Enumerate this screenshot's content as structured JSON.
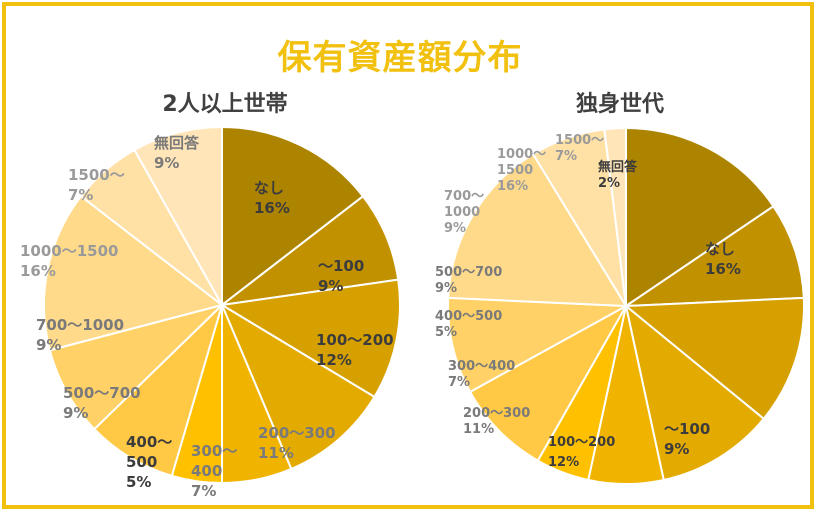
{
  "title": "保有資産額分布",
  "colors": {
    "border": "#f2c00e",
    "title": "#f2c00e",
    "slices": [
      "#ad8400",
      "#c29100",
      "#d6a000",
      "#e3aa00",
      "#f0b400",
      "#ffc000",
      "#ffc845",
      "#ffd166",
      "#ffda8a",
      "#ffe1a6",
      "#ffe5b8",
      "#ffe8c6"
    ]
  },
  "chart_data": [
    {
      "type": "pie",
      "title": "2人以上世帯",
      "categories": [
        "なし",
        "～100",
        "100～200",
        "200～300",
        "300～400",
        "400～500",
        "500～700",
        "700～1000",
        "1000～1500",
        "1500～",
        "無回答"
      ],
      "values": [
        16,
        9,
        12,
        11,
        7,
        5,
        9,
        9,
        16,
        7,
        9
      ],
      "labels": [
        [
          "なし",
          "16%"
        ],
        [
          "～100",
          "9%"
        ],
        [
          "100～200",
          "12%"
        ],
        [
          "200～300",
          "11%"
        ],
        [
          "300～",
          "400",
          "7%"
        ],
        [
          "400～",
          "500",
          "5%"
        ],
        [
          "500～700",
          "9%"
        ],
        [
          "700～1000",
          "9%"
        ],
        [
          "1000～1500",
          "16%"
        ],
        [
          "1500～",
          "7%"
        ],
        [
          "無回答",
          "9%"
        ]
      ]
    },
    {
      "type": "pie",
      "title": "独身世代",
      "categories": [
        "なし",
        "～100",
        "100～200",
        "200～300",
        "300～400",
        "400～500",
        "500～700",
        "700～1000",
        "1000～1500",
        "1500～",
        "無回答"
      ],
      "values": [
        16,
        9,
        12,
        11,
        7,
        5,
        9,
        9,
        16,
        7,
        2
      ],
      "labels": [
        [
          "なし",
          "16%"
        ],
        [
          "～100",
          "9%"
        ],
        [
          "100～200",
          "12%"
        ],
        [
          "200～300",
          "11%"
        ],
        [
          "300～400",
          "7%"
        ],
        [
          "400～500",
          "5%"
        ],
        [
          "500～700",
          "9%"
        ],
        [
          "700～",
          "1000",
          "9%"
        ],
        [
          "1000～",
          "1500",
          "16%"
        ],
        [
          "1500～",
          "7%"
        ],
        [
          "無回答",
          "2%"
        ]
      ]
    }
  ]
}
